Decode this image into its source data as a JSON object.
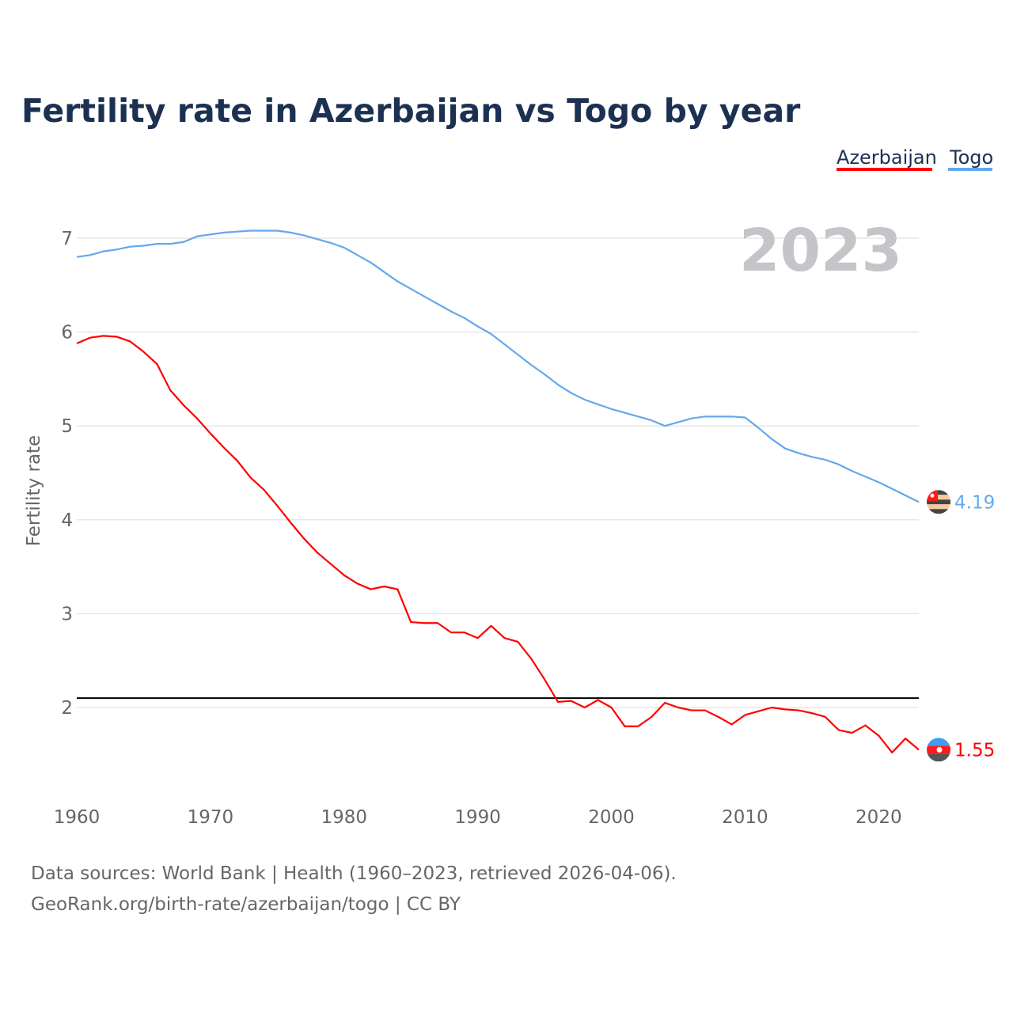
{
  "chart_data": {
    "type": "line",
    "title": "Fertility rate in Azerbaijan vs Togo by year",
    "xlabel": "",
    "ylabel": "Fertility rate",
    "xlim": [
      1960,
      2023
    ],
    "ylim": [
      1.2,
      7.2
    ],
    "x_ticks": [
      1960,
      1970,
      1980,
      1990,
      2000,
      2010,
      2020
    ],
    "y_ticks": [
      2,
      3,
      4,
      5,
      6,
      7
    ],
    "grid": true,
    "legend_position": "top-right",
    "year_label": "2023",
    "reference_line": 2.1,
    "series": [
      {
        "name": "Azerbaijan",
        "color": "#ff0000",
        "end_label": "1.55",
        "flag_icon": "azerbaijan-flag-icon",
        "values": [
          5.88,
          5.94,
          5.96,
          5.95,
          5.9,
          5.79,
          5.66,
          5.38,
          5.22,
          5.08,
          4.92,
          4.77,
          4.63,
          4.45,
          4.32,
          4.15,
          3.97,
          3.8,
          3.65,
          3.53,
          3.41,
          3.32,
          3.26,
          3.29,
          3.26,
          2.91,
          2.9,
          2.9,
          2.8,
          2.8,
          2.74,
          2.87,
          2.74,
          2.7,
          2.52,
          2.3,
          2.06,
          2.07,
          2.0,
          2.08,
          2.0,
          1.8,
          1.8,
          1.9,
          2.05,
          2.0,
          1.97,
          1.97,
          1.9,
          1.82,
          1.92,
          1.96,
          2.0,
          1.98,
          1.97,
          1.94,
          1.9,
          1.76,
          1.73,
          1.81,
          1.7,
          1.52,
          1.67,
          1.55
        ]
      },
      {
        "name": "Togo",
        "color": "#64a8ec",
        "end_label": "4.19",
        "flag_icon": "togo-flag-icon",
        "values": [
          6.8,
          6.82,
          6.86,
          6.88,
          6.91,
          6.92,
          6.94,
          6.94,
          6.96,
          7.02,
          7.04,
          7.06,
          7.07,
          7.08,
          7.08,
          7.08,
          7.06,
          7.03,
          6.99,
          6.95,
          6.9,
          6.82,
          6.74,
          6.64,
          6.54,
          6.46,
          6.38,
          6.3,
          6.22,
          6.15,
          6.06,
          5.98,
          5.87,
          5.76,
          5.65,
          5.55,
          5.44,
          5.35,
          5.28,
          5.23,
          5.18,
          5.14,
          5.1,
          5.06,
          5.0,
          5.04,
          5.08,
          5.1,
          5.1,
          5.1,
          5.09,
          4.98,
          4.86,
          4.76,
          4.71,
          4.67,
          4.64,
          4.59,
          4.52,
          4.46,
          4.4,
          4.33,
          4.26,
          4.19
        ]
      }
    ],
    "source_lines": [
      "Data sources: World Bank | Health (1960–2023, retrieved 2026-04-06).",
      "GeoRank.org/birth-rate/azerbaijan/togo | CC BY"
    ]
  }
}
